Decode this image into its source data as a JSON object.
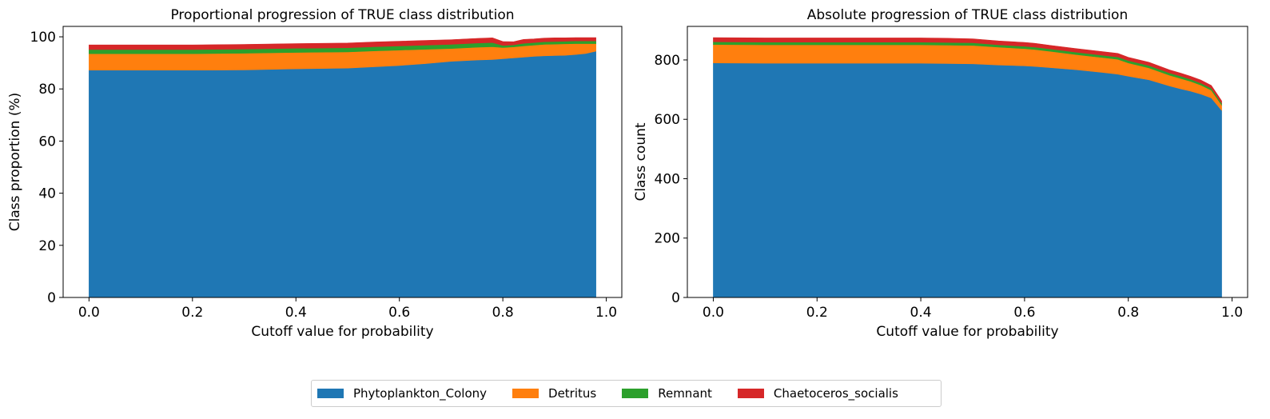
{
  "chart_data": [
    {
      "type": "area",
      "stacked": true,
      "title": "Proportional progression of TRUE class distribution",
      "xlabel": "Cutoff value for probability",
      "ylabel": "Class proportion (%)",
      "xlim": [
        -0.05,
        1.03
      ],
      "ylim": [
        0,
        104
      ],
      "xticks": [
        0.0,
        0.2,
        0.4,
        0.6,
        0.8,
        1.0
      ],
      "xtick_labels": [
        "0.0",
        "0.2",
        "0.4",
        "0.6",
        "0.8",
        "1.0"
      ],
      "yticks": [
        0,
        20,
        40,
        60,
        80,
        100
      ],
      "ytick_labels": [
        "0",
        "20",
        "40",
        "60",
        "80",
        "100"
      ],
      "grid": false,
      "x": [
        0.0,
        0.1,
        0.2,
        0.3,
        0.4,
        0.5,
        0.55,
        0.6,
        0.65,
        0.7,
        0.75,
        0.78,
        0.8,
        0.82,
        0.84,
        0.86,
        0.88,
        0.9,
        0.92,
        0.94,
        0.96,
        0.98
      ],
      "series": [
        {
          "name": "Phytoplankton_Colony",
          "color": "#1f77b4",
          "values": [
            87.2,
            87.2,
            87.2,
            87.3,
            87.7,
            88.0,
            88.5,
            89.0,
            89.7,
            90.6,
            91.1,
            91.3,
            91.6,
            91.9,
            92.2,
            92.5,
            92.7,
            92.8,
            92.9,
            93.2,
            93.6,
            94.5
          ]
        },
        {
          "name": "Detritus",
          "color": "#ff7f0e",
          "values": [
            6.3,
            6.3,
            6.3,
            6.4,
            6.3,
            6.2,
            6.1,
            5.9,
            5.5,
            4.9,
            4.9,
            4.9,
            4.3,
            4.2,
            4.3,
            4.3,
            4.4,
            4.4,
            4.4,
            4.2,
            3.8,
            2.9
          ]
        },
        {
          "name": "Remnant",
          "color": "#2ca02c",
          "values": [
            1.6,
            1.6,
            1.6,
            1.6,
            1.6,
            1.6,
            1.6,
            1.6,
            1.6,
            1.6,
            1.6,
            1.6,
            0.8,
            0.8,
            1.0,
            1.0,
            1.0,
            1.0,
            1.0,
            1.0,
            1.0,
            1.0
          ]
        },
        {
          "name": "Chaetoceros_socialis",
          "color": "#d62728",
          "values": [
            1.8,
            1.8,
            1.8,
            1.8,
            1.8,
            1.8,
            1.8,
            1.8,
            1.8,
            1.8,
            1.8,
            1.8,
            1.5,
            1.2,
            1.5,
            1.4,
            1.4,
            1.4,
            1.3,
            1.3,
            1.3,
            1.3
          ]
        }
      ]
    },
    {
      "type": "area",
      "stacked": true,
      "title": "Absolute progression of TRUE class distribution",
      "xlabel": "Cutoff value for probability",
      "ylabel": "Class count",
      "xlim": [
        -0.05,
        1.03
      ],
      "ylim": [
        0,
        913
      ],
      "xticks": [
        0.0,
        0.2,
        0.4,
        0.6,
        0.8,
        1.0
      ],
      "xtick_labels": [
        "0.0",
        "0.2",
        "0.4",
        "0.6",
        "0.8",
        "1.0"
      ],
      "yticks": [
        0,
        200,
        400,
        600,
        800
      ],
      "ytick_labels": [
        "0",
        "200",
        "400",
        "600",
        "800"
      ],
      "grid": false,
      "x": [
        0.0,
        0.1,
        0.2,
        0.3,
        0.4,
        0.45,
        0.5,
        0.55,
        0.6,
        0.62,
        0.65,
        0.7,
        0.75,
        0.78,
        0.8,
        0.84,
        0.88,
        0.9,
        0.92,
        0.94,
        0.96,
        0.98
      ],
      "series": [
        {
          "name": "Phytoplankton_Colony",
          "color": "#1f77b4",
          "values": [
            790,
            789,
            789,
            789,
            789,
            788,
            787,
            783,
            780,
            778,
            774,
            767,
            758,
            752,
            745,
            733,
            712,
            703,
            695,
            685,
            672,
            630
          ]
        },
        {
          "name": "Detritus",
          "color": "#ff7f0e",
          "values": [
            62,
            62,
            62,
            62,
            62,
            62,
            62,
            60,
            58,
            57,
            55,
            51,
            50,
            50,
            45,
            40,
            36,
            35,
            33,
            30,
            26,
            18
          ]
        },
        {
          "name": "Remnant",
          "color": "#2ca02c",
          "values": [
            9,
            9,
            9,
            9,
            9,
            9,
            9,
            8,
            8,
            8,
            8,
            8,
            8,
            8,
            8,
            8,
            8,
            8,
            7,
            7,
            7,
            6
          ]
        },
        {
          "name": "Chaetoceros_socialis",
          "color": "#d62728",
          "values": [
            14,
            14,
            14,
            14,
            14,
            14,
            13,
            13,
            13,
            13,
            12,
            12,
            12,
            12,
            11,
            11,
            10,
            10,
            10,
            10,
            9,
            8
          ]
        }
      ]
    }
  ],
  "legend": {
    "placement": "bottom-center",
    "items": [
      {
        "label": "Phytoplankton_Colony",
        "color": "#1f77b4"
      },
      {
        "label": "Detritus",
        "color": "#ff7f0e"
      },
      {
        "label": "Remnant",
        "color": "#2ca02c"
      },
      {
        "label": "Chaetoceros_socialis",
        "color": "#d62728"
      }
    ]
  }
}
